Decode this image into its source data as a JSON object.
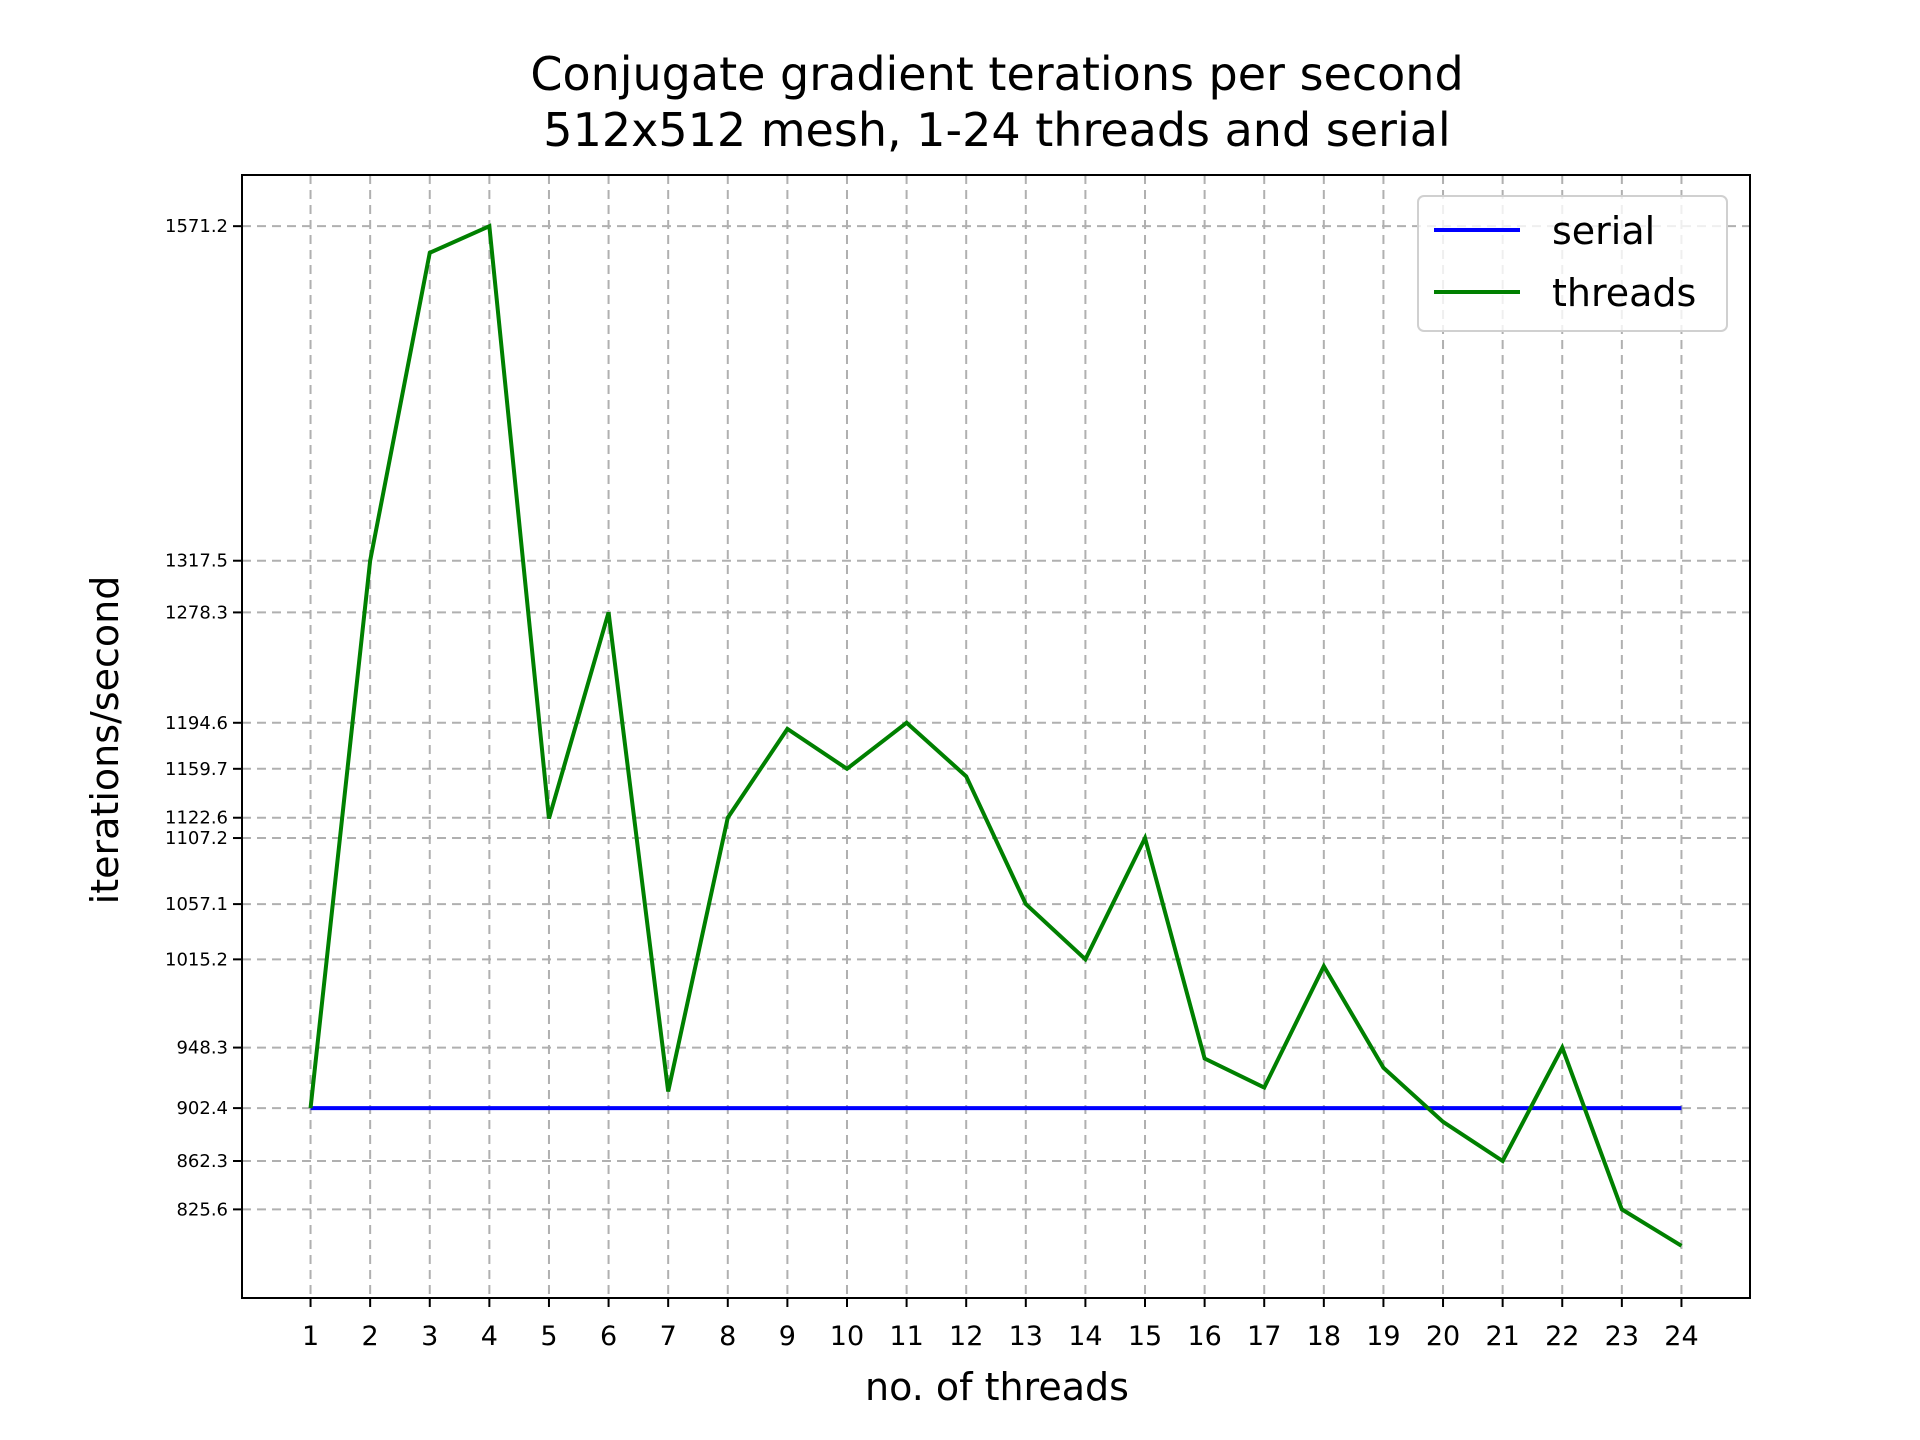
{
  "chart_data": {
    "type": "line",
    "title": [
      "Conjugate gradient terations per second",
      "512x512 mesh, 1-24 threads and serial"
    ],
    "xlabel": "no. of threads",
    "ylabel": "iterations/second",
    "x": [
      1,
      2,
      3,
      4,
      5,
      6,
      7,
      8,
      9,
      10,
      11,
      12,
      13,
      14,
      15,
      16,
      17,
      18,
      19,
      20,
      21,
      22,
      23,
      24
    ],
    "xticks": [
      "1",
      "2",
      "3",
      "4",
      "5",
      "6",
      "7",
      "8",
      "9",
      "10",
      "11",
      "12",
      "13",
      "14",
      "15",
      "16",
      "17",
      "18",
      "19",
      "20",
      "21",
      "22",
      "23",
      "24"
    ],
    "yticks": [
      825.6,
      862.3,
      902.4,
      948.3,
      1015.2,
      1057.1,
      1107.2,
      1122.6,
      1159.7,
      1194.6,
      1278.3,
      1317.5,
      1571.2
    ],
    "ytick_labels": [
      "825.6",
      "862.3",
      "902.4",
      "948.3",
      "1015.2",
      "1057.1",
      "1107.2",
      "1122.6",
      "1159.7",
      "1194.6",
      "1278.3",
      "1317.5",
      "1571.2"
    ],
    "xlim": [
      -0.15,
      25.15
    ],
    "ylim": [
      758.4,
      1610.0
    ],
    "grid": true,
    "legend_position": "top-right",
    "series": [
      {
        "name": "serial",
        "color": "#0000ff",
        "values": [
          902.4,
          902.4,
          902.4,
          902.4,
          902.4,
          902.4,
          902.4,
          902.4,
          902.4,
          902.4,
          902.4,
          902.4,
          902.4,
          902.4,
          902.4,
          902.4,
          902.4,
          902.4,
          902.4,
          902.4,
          902.4,
          902.4,
          902.4,
          902.4
        ]
      },
      {
        "name": "threads",
        "color": "#008000",
        "values": [
          902.4,
          1317.5,
          1551.0,
          1571.2,
          1122.0,
          1278.3,
          915.0,
          1122.6,
          1190.0,
          1159.7,
          1194.6,
          1154.0,
          1057.1,
          1015.2,
          1107.2,
          940.0,
          918.0,
          1010.0,
          933.0,
          892.0,
          862.3,
          948.3,
          825.6,
          798.0
        ]
      }
    ]
  }
}
